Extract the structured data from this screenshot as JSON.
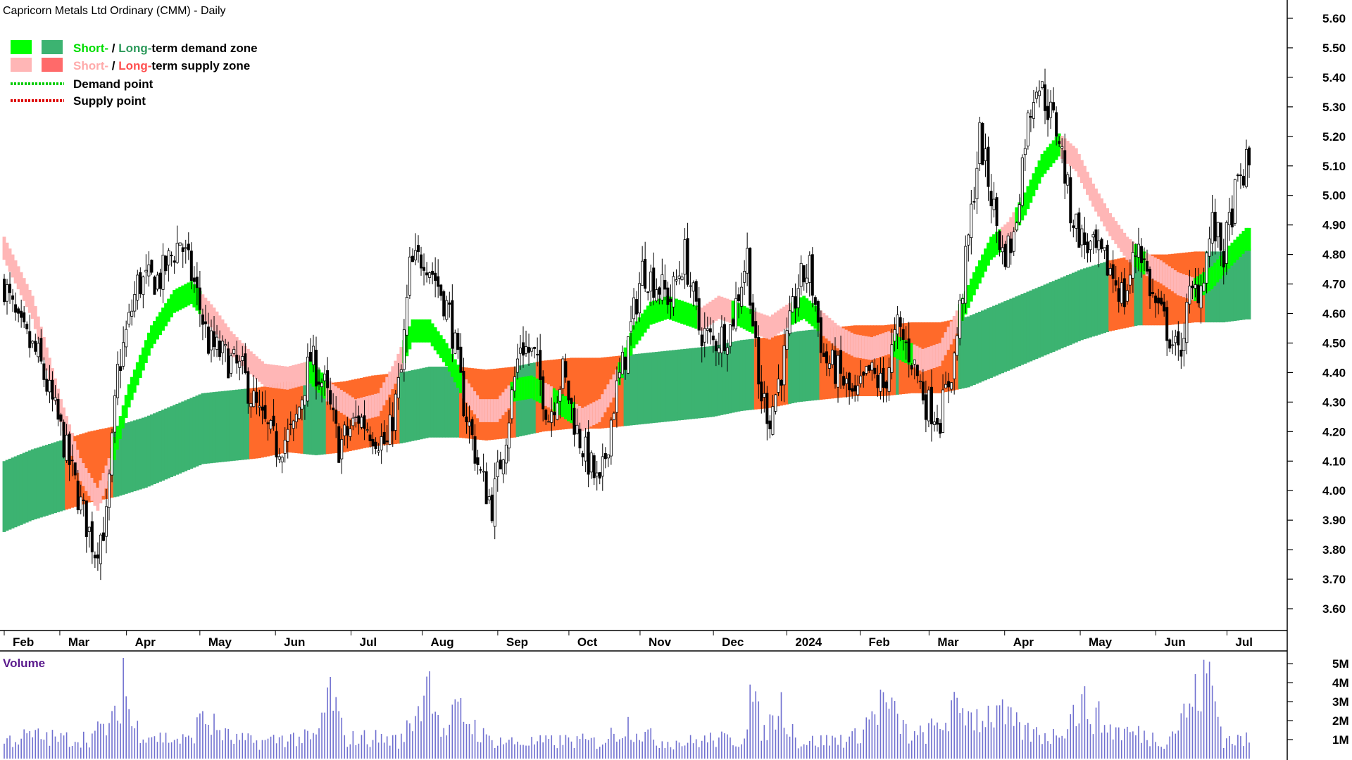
{
  "chart_data": {
    "type": "candlestick",
    "title": "Capricorn Metals Ltd Ordinary (CMM) - Daily",
    "colors": {
      "short_demand": "#00ff00",
      "long_demand": "#3cb371",
      "short_supply": "#ffb6b6",
      "long_supply": "#ff6a2a",
      "demand_point": "#00cc00",
      "supply_point": "#dd0000",
      "candle": "#000000",
      "volume": "#7070d0",
      "volume_label": "#5a1a8c"
    },
    "legend": {
      "line1": {
        "short": "Short-",
        "sep": " / ",
        "long": "Long-",
        "rest": "term demand zone"
      },
      "line2": {
        "short": "Short-",
        "sep": " / ",
        "long": "Long-",
        "rest": "term supply zone"
      },
      "line3": "Demand point",
      "line4": "Supply point"
    },
    "months": [
      "Feb",
      "Mar",
      "Apr",
      "May",
      "Jun",
      "Jul",
      "Aug",
      "Sep",
      "Oct",
      "Nov",
      "Dec",
      "2024",
      "Feb",
      "Mar",
      "Apr",
      "May",
      "Jun",
      "Jul"
    ],
    "price_axis": {
      "min": 3.55,
      "max": 5.6,
      "ticks": [
        "5.60",
        "5.50",
        "5.40",
        "5.30",
        "5.20",
        "5.10",
        "5.00",
        "4.90",
        "4.80",
        "4.70",
        "4.60",
        "4.50",
        "4.40",
        "4.30",
        "4.20",
        "4.10",
        "4.00",
        "3.90",
        "3.80",
        "3.70",
        "3.60"
      ]
    },
    "volume_label": "Volume",
    "volume_axis": {
      "max_millions": 5.3,
      "ticks": [
        "5M",
        "4M",
        "3M",
        "2M",
        "1M"
      ]
    },
    "close_anchors": [
      [
        0,
        4.7
      ],
      [
        5,
        4.55
      ],
      [
        12,
        4.45
      ],
      [
        20,
        4.2
      ],
      [
        27,
        3.95
      ],
      [
        32,
        3.8
      ],
      [
        36,
        3.9
      ],
      [
        40,
        4.4
      ],
      [
        47,
        4.7
      ],
      [
        55,
        4.72
      ],
      [
        62,
        4.85
      ],
      [
        67,
        4.7
      ],
      [
        72,
        4.5
      ],
      [
        78,
        4.45
      ],
      [
        84,
        4.4
      ],
      [
        90,
        4.25
      ],
      [
        96,
        4.15
      ],
      [
        102,
        4.2
      ],
      [
        108,
        4.45
      ],
      [
        113,
        4.35
      ],
      [
        118,
        4.15
      ],
      [
        125,
        4.25
      ],
      [
        130,
        4.2
      ],
      [
        135,
        4.15
      ],
      [
        140,
        4.4
      ],
      [
        143,
        4.75
      ],
      [
        148,
        4.8
      ],
      [
        152,
        4.72
      ],
      [
        157,
        4.6
      ],
      [
        162,
        4.3
      ],
      [
        168,
        4.05
      ],
      [
        172,
        3.95
      ],
      [
        177,
        4.2
      ],
      [
        182,
        4.5
      ],
      [
        187,
        4.45
      ],
      [
        192,
        4.25
      ],
      [
        197,
        4.4
      ],
      [
        202,
        4.2
      ],
      [
        206,
        4.1
      ],
      [
        210,
        4.0
      ],
      [
        215,
        4.3
      ],
      [
        220,
        4.5
      ],
      [
        225,
        4.75
      ],
      [
        230,
        4.7
      ],
      [
        235,
        4.65
      ],
      [
        240,
        4.8
      ],
      [
        245,
        4.55
      ],
      [
        250,
        4.5
      ],
      [
        256,
        4.55
      ],
      [
        262,
        4.8
      ],
      [
        266,
        4.35
      ],
      [
        270,
        4.25
      ],
      [
        275,
        4.45
      ],
      [
        280,
        4.7
      ],
      [
        284,
        4.75
      ],
      [
        289,
        4.45
      ],
      [
        294,
        4.4
      ],
      [
        300,
        4.3
      ],
      [
        305,
        4.4
      ],
      [
        310,
        4.35
      ],
      [
        315,
        4.55
      ],
      [
        320,
        4.45
      ],
      [
        325,
        4.3
      ],
      [
        330,
        4.25
      ],
      [
        335,
        4.45
      ],
      [
        340,
        4.85
      ],
      [
        344,
        5.2
      ],
      [
        348,
        5.0
      ],
      [
        352,
        4.8
      ],
      [
        356,
        4.85
      ],
      [
        360,
        5.2
      ],
      [
        364,
        5.4
      ],
      [
        368,
        5.3
      ],
      [
        372,
        5.2
      ],
      [
        376,
        4.95
      ],
      [
        380,
        4.85
      ],
      [
        385,
        4.8
      ],
      [
        390,
        4.75
      ],
      [
        395,
        4.65
      ],
      [
        400,
        4.85
      ],
      [
        405,
        4.65
      ],
      [
        410,
        4.55
      ],
      [
        414,
        4.45
      ],
      [
        418,
        4.65
      ],
      [
        422,
        4.7
      ],
      [
        426,
        4.9
      ],
      [
        430,
        4.8
      ],
      [
        434,
        5.0
      ],
      [
        438,
        5.1
      ]
    ],
    "volume_anchors": [
      [
        0,
        1.1
      ],
      [
        10,
        1.4
      ],
      [
        20,
        1.2
      ],
      [
        30,
        1.3
      ],
      [
        40,
        2.4
      ],
      [
        42,
        5.3
      ],
      [
        45,
        2.0
      ],
      [
        55,
        1.3
      ],
      [
        65,
        1.1
      ],
      [
        70,
        2.5
      ],
      [
        80,
        1.2
      ],
      [
        90,
        1.0
      ],
      [
        100,
        1.3
      ],
      [
        110,
        1.2
      ],
      [
        115,
        4.3
      ],
      [
        120,
        1.2
      ],
      [
        130,
        1.3
      ],
      [
        140,
        1.1
      ],
      [
        150,
        4.6
      ],
      [
        155,
        1.4
      ],
      [
        160,
        3.0
      ],
      [
        170,
        1.2
      ],
      [
        180,
        1.0
      ],
      [
        190,
        1.0
      ],
      [
        200,
        1.1
      ],
      [
        210,
        1.0
      ],
      [
        220,
        2.1
      ],
      [
        230,
        1.1
      ],
      [
        240,
        1.0
      ],
      [
        250,
        1.2
      ],
      [
        260,
        1.1
      ],
      [
        263,
        3.9
      ],
      [
        268,
        1.5
      ],
      [
        274,
        3.5
      ],
      [
        280,
        1.0
      ],
      [
        290,
        1.1
      ],
      [
        300,
        1.3
      ],
      [
        310,
        3.5
      ],
      [
        320,
        1.2
      ],
      [
        330,
        2.0
      ],
      [
        336,
        3.2
      ],
      [
        340,
        2.5
      ],
      [
        350,
        2.8
      ],
      [
        360,
        1.6
      ],
      [
        370,
        1.4
      ],
      [
        380,
        3.4
      ],
      [
        390,
        1.8
      ],
      [
        400,
        1.5
      ],
      [
        410,
        1.1
      ],
      [
        425,
        5.1
      ],
      [
        430,
        1.2
      ],
      [
        440,
        1.1
      ]
    ],
    "ma_short_anchors": [
      [
        0,
        4.8
      ],
      [
        10,
        4.6
      ],
      [
        20,
        4.25
      ],
      [
        27,
        4.05
      ],
      [
        33,
        3.95
      ],
      [
        37,
        4.05
      ],
      [
        44,
        4.3
      ],
      [
        52,
        4.5
      ],
      [
        60,
        4.62
      ],
      [
        66,
        4.65
      ],
      [
        74,
        4.56
      ],
      [
        80,
        4.48
      ],
      [
        86,
        4.42
      ],
      [
        92,
        4.37
      ],
      [
        100,
        4.36
      ],
      [
        108,
        4.38
      ],
      [
        116,
        4.3
      ],
      [
        124,
        4.25
      ],
      [
        132,
        4.27
      ],
      [
        138,
        4.38
      ],
      [
        144,
        4.52
      ],
      [
        150,
        4.52
      ],
      [
        156,
        4.44
      ],
      [
        162,
        4.33
      ],
      [
        168,
        4.25
      ],
      [
        174,
        4.25
      ],
      [
        180,
        4.32
      ],
      [
        186,
        4.33
      ],
      [
        192,
        4.3
      ],
      [
        198,
        4.26
      ],
      [
        204,
        4.22
      ],
      [
        210,
        4.25
      ],
      [
        216,
        4.35
      ],
      [
        222,
        4.5
      ],
      [
        228,
        4.58
      ],
      [
        234,
        4.6
      ],
      [
        240,
        4.58
      ],
      [
        246,
        4.56
      ],
      [
        252,
        4.6
      ],
      [
        258,
        4.58
      ],
      [
        264,
        4.55
      ],
      [
        270,
        4.53
      ],
      [
        276,
        4.57
      ],
      [
        282,
        4.6
      ],
      [
        288,
        4.55
      ],
      [
        294,
        4.5
      ],
      [
        300,
        4.47
      ],
      [
        306,
        4.46
      ],
      [
        312,
        4.48
      ],
      [
        318,
        4.45
      ],
      [
        324,
        4.42
      ],
      [
        330,
        4.44
      ],
      [
        336,
        4.55
      ],
      [
        342,
        4.68
      ],
      [
        348,
        4.8
      ],
      [
        354,
        4.85
      ],
      [
        360,
        4.95
      ],
      [
        366,
        5.08
      ],
      [
        372,
        5.15
      ],
      [
        378,
        5.1
      ],
      [
        384,
        4.98
      ],
      [
        390,
        4.88
      ],
      [
        396,
        4.8
      ],
      [
        402,
        4.75
      ],
      [
        408,
        4.72
      ],
      [
        414,
        4.68
      ],
      [
        420,
        4.66
      ],
      [
        426,
        4.7
      ],
      [
        432,
        4.77
      ],
      [
        438,
        4.83
      ]
    ],
    "ma_short_width": 0.06,
    "ma_long_anchors": [
      [
        0,
        3.98
      ],
      [
        10,
        4.02
      ],
      [
        20,
        4.05
      ],
      [
        30,
        4.08
      ],
      [
        40,
        4.1
      ],
      [
        50,
        4.13
      ],
      [
        60,
        4.17
      ],
      [
        70,
        4.21
      ],
      [
        80,
        4.22
      ],
      [
        90,
        4.23
      ],
      [
        100,
        4.25
      ],
      [
        110,
        4.24
      ],
      [
        120,
        4.25
      ],
      [
        130,
        4.27
      ],
      [
        140,
        4.28
      ],
      [
        150,
        4.3
      ],
      [
        160,
        4.3
      ],
      [
        170,
        4.29
      ],
      [
        180,
        4.3
      ],
      [
        190,
        4.32
      ],
      [
        200,
        4.33
      ],
      [
        210,
        4.33
      ],
      [
        220,
        4.34
      ],
      [
        230,
        4.35
      ],
      [
        240,
        4.36
      ],
      [
        250,
        4.37
      ],
      [
        260,
        4.39
      ],
      [
        270,
        4.4
      ],
      [
        280,
        4.42
      ],
      [
        290,
        4.43
      ],
      [
        300,
        4.44
      ],
      [
        310,
        4.44
      ],
      [
        320,
        4.45
      ],
      [
        330,
        4.45
      ],
      [
        340,
        4.47
      ],
      [
        350,
        4.51
      ],
      [
        360,
        4.55
      ],
      [
        370,
        4.59
      ],
      [
        380,
        4.63
      ],
      [
        390,
        4.66
      ],
      [
        400,
        4.68
      ],
      [
        410,
        4.68
      ],
      [
        420,
        4.69
      ],
      [
        430,
        4.69
      ],
      [
        438,
        4.7
      ]
    ],
    "ma_long_width": 0.24
  }
}
